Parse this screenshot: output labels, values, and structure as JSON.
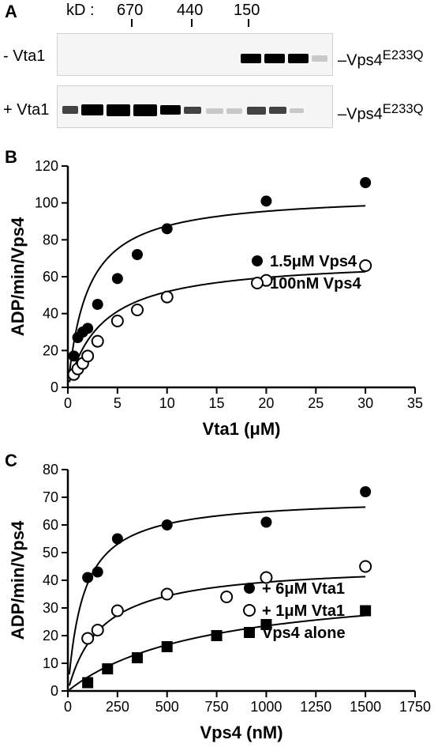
{
  "panelA": {
    "label": "A",
    "header": "kD :",
    "mw_markers": [
      "670",
      "440",
      "150"
    ],
    "rows": [
      {
        "condition": "- Vta1",
        "protein": "Vps4",
        "superscript": "E233Q"
      },
      {
        "condition": "+ Vta1",
        "protein": "Vps4",
        "superscript": "E233Q"
      }
    ]
  },
  "panelB": {
    "label": "B",
    "type": "scatter-line",
    "xlabel": "Vta1 (μM)",
    "ylabel": "ADP/min/Vps4",
    "xlim": [
      0,
      35
    ],
    "ylim": [
      0,
      120
    ],
    "xtick_step": 5,
    "ytick_step": 20,
    "background_color": "#ffffff",
    "axis_color": "#000000",
    "line_color": "#000000",
    "line_width": 2,
    "marker_size": 7,
    "series": [
      {
        "name": "1.5μM Vps4",
        "marker": "circle-filled",
        "marker_color": "#000000",
        "x": [
          0.6,
          1,
          1.5,
          2,
          3,
          5,
          7,
          10,
          20,
          30
        ],
        "y": [
          17,
          27,
          30,
          32,
          45,
          59,
          72,
          86,
          101,
          111
        ]
      },
      {
        "name": "100nM Vps4",
        "marker": "circle-open",
        "marker_color": "#000000",
        "x": [
          0.6,
          1,
          1.5,
          2,
          3,
          5,
          7,
          10,
          20,
          30
        ],
        "y": [
          7,
          10,
          13,
          17,
          25,
          36,
          42,
          49,
          58,
          66
        ]
      }
    ],
    "curves": [
      {
        "ymax": 105,
        "k": 2.0
      },
      {
        "ymax": 70,
        "k": 3.5
      }
    ]
  },
  "panelC": {
    "label": "C",
    "type": "scatter-line",
    "xlabel": "Vps4 (nM)",
    "ylabel": "ADP/min/Vps4",
    "xlim": [
      0,
      1750
    ],
    "ylim": [
      0,
      80
    ],
    "xtick_step": 250,
    "ytick_step": 10,
    "background_color": "#ffffff",
    "axis_color": "#000000",
    "line_color": "#000000",
    "line_width": 2,
    "marker_size": 7,
    "series": [
      {
        "name": "+ 6μM Vta1",
        "marker": "circle-filled",
        "marker_color": "#000000",
        "x": [
          100,
          150,
          250,
          500,
          1000,
          1500
        ],
        "y": [
          41,
          43,
          55,
          60,
          61,
          72
        ]
      },
      {
        "name": "+ 1μM Vta1",
        "marker": "circle-open",
        "marker_color": "#000000",
        "x": [
          100,
          150,
          250,
          500,
          800,
          1000,
          1500
        ],
        "y": [
          19,
          22,
          29,
          35,
          34,
          41,
          45
        ]
      },
      {
        "name": "Vps4 alone",
        "marker": "square-filled",
        "marker_color": "#000000",
        "x": [
          100,
          200,
          350,
          500,
          750,
          1000,
          1500
        ],
        "y": [
          3,
          8,
          12,
          16,
          20,
          24,
          29
        ]
      }
    ],
    "curves": [
      {
        "ymax": 70,
        "k": 80
      },
      {
        "ymax": 46,
        "k": 170
      },
      {
        "ymax": 40,
        "k": 700
      }
    ]
  }
}
